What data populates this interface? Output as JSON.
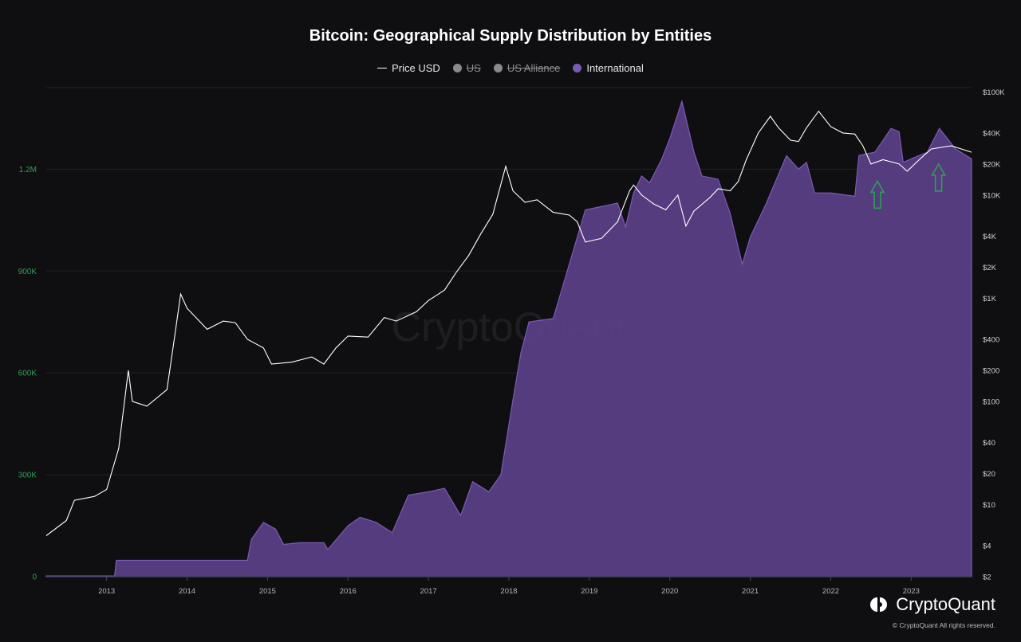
{
  "chart_data": {
    "type": "area",
    "title": "Bitcoin: Geographical Supply Distribution by Entities",
    "legend": [
      {
        "name": "Price USD",
        "marker": "line",
        "color": "#ffffff",
        "hidden": false
      },
      {
        "name": "US",
        "marker": "dot",
        "color": "#8a8a8a",
        "hidden": true
      },
      {
        "name": "US Alliance",
        "marker": "dot",
        "color": "#8a8a8a",
        "hidden": true
      },
      {
        "name": "International",
        "marker": "dot",
        "color": "#7b5ab3",
        "hidden": false
      }
    ],
    "x_ticks": [
      "2013",
      "2014",
      "2015",
      "2016",
      "2017",
      "2018",
      "2019",
      "2020",
      "2021",
      "2022",
      "2023"
    ],
    "x_range": [
      2012.25,
      2023.75
    ],
    "y_left": {
      "ticks": [
        0,
        300000,
        600000,
        900000,
        1200000
      ],
      "tick_labels": [
        "0",
        "300K",
        "600K",
        "900K",
        "1.2M"
      ],
      "range": [
        0,
        1440000
      ]
    },
    "y_right": {
      "scale": "log",
      "ticks": [
        2,
        4,
        10,
        20,
        40,
        100,
        200,
        400,
        1000,
        2000,
        4000,
        10000,
        20000,
        40000,
        100000
      ],
      "tick_labels": [
        "$2",
        "$4",
        "$10",
        "$20",
        "$40",
        "$100",
        "$200",
        "$400",
        "$1K",
        "$2K",
        "$4K",
        "$10K",
        "$20K",
        "$40K",
        "$100K"
      ],
      "range": [
        2,
        110000
      ]
    },
    "grid": true,
    "legend_position": "top-center",
    "series": [
      {
        "name": "International",
        "axis": "left",
        "color": "#5a3f86",
        "points": [
          [
            2012.25,
            2000
          ],
          [
            2013.1,
            2000
          ],
          [
            2013.12,
            48000
          ],
          [
            2014.75,
            48000
          ],
          [
            2014.8,
            110000
          ],
          [
            2014.95,
            160000
          ],
          [
            2015.1,
            140000
          ],
          [
            2015.2,
            95000
          ],
          [
            2015.4,
            100000
          ],
          [
            2015.7,
            100000
          ],
          [
            2015.75,
            80000
          ],
          [
            2016.0,
            150000
          ],
          [
            2016.15,
            175000
          ],
          [
            2016.35,
            160000
          ],
          [
            2016.55,
            130000
          ],
          [
            2016.75,
            240000
          ],
          [
            2017.0,
            250000
          ],
          [
            2017.2,
            260000
          ],
          [
            2017.4,
            180000
          ],
          [
            2017.55,
            280000
          ],
          [
            2017.75,
            250000
          ],
          [
            2017.9,
            300000
          ],
          [
            2018.05,
            520000
          ],
          [
            2018.15,
            660000
          ],
          [
            2018.25,
            750000
          ],
          [
            2018.55,
            760000
          ],
          [
            2018.75,
            920000
          ],
          [
            2018.95,
            1080000
          ],
          [
            2019.35,
            1100000
          ],
          [
            2019.45,
            1030000
          ],
          [
            2019.55,
            1130000
          ],
          [
            2019.65,
            1180000
          ],
          [
            2019.75,
            1160000
          ],
          [
            2019.9,
            1230000
          ],
          [
            2020.0,
            1290000
          ],
          [
            2020.15,
            1400000
          ],
          [
            2020.3,
            1250000
          ],
          [
            2020.4,
            1180000
          ],
          [
            2020.6,
            1170000
          ],
          [
            2020.75,
            1070000
          ],
          [
            2020.9,
            920000
          ],
          [
            2021.0,
            1000000
          ],
          [
            2021.2,
            1100000
          ],
          [
            2021.45,
            1240000
          ],
          [
            2021.6,
            1200000
          ],
          [
            2021.7,
            1220000
          ],
          [
            2021.8,
            1130000
          ],
          [
            2022.0,
            1130000
          ],
          [
            2022.3,
            1120000
          ],
          [
            2022.35,
            1240000
          ],
          [
            2022.55,
            1250000
          ],
          [
            2022.75,
            1320000
          ],
          [
            2022.85,
            1310000
          ],
          [
            2022.9,
            1220000
          ],
          [
            2023.0,
            1230000
          ],
          [
            2023.2,
            1250000
          ],
          [
            2023.35,
            1320000
          ],
          [
            2023.55,
            1260000
          ],
          [
            2023.75,
            1230000
          ]
        ]
      },
      {
        "name": "Price USD",
        "axis": "right",
        "color": "#ffffff",
        "points": [
          [
            2012.25,
            5
          ],
          [
            2012.5,
            7
          ],
          [
            2012.6,
            11
          ],
          [
            2012.85,
            12
          ],
          [
            2013.0,
            14
          ],
          [
            2013.15,
            35
          ],
          [
            2013.27,
            200
          ],
          [
            2013.32,
            100
          ],
          [
            2013.5,
            90
          ],
          [
            2013.75,
            130
          ],
          [
            2013.85,
            450
          ],
          [
            2013.92,
            1100
          ],
          [
            2014.0,
            800
          ],
          [
            2014.25,
            500
          ],
          [
            2014.45,
            600
          ],
          [
            2014.6,
            580
          ],
          [
            2014.75,
            400
          ],
          [
            2014.95,
            330
          ],
          [
            2015.05,
            230
          ],
          [
            2015.3,
            240
          ],
          [
            2015.55,
            270
          ],
          [
            2015.7,
            230
          ],
          [
            2015.85,
            330
          ],
          [
            2016.0,
            430
          ],
          [
            2016.25,
            420
          ],
          [
            2016.45,
            650
          ],
          [
            2016.6,
            600
          ],
          [
            2016.85,
            740
          ],
          [
            2017.0,
            950
          ],
          [
            2017.2,
            1200
          ],
          [
            2017.35,
            1800
          ],
          [
            2017.5,
            2600
          ],
          [
            2017.65,
            4200
          ],
          [
            2017.8,
            6500
          ],
          [
            2017.96,
            19000
          ],
          [
            2018.05,
            11000
          ],
          [
            2018.2,
            8500
          ],
          [
            2018.35,
            9000
          ],
          [
            2018.55,
            6800
          ],
          [
            2018.75,
            6400
          ],
          [
            2018.85,
            5500
          ],
          [
            2018.95,
            3500
          ],
          [
            2019.15,
            3800
          ],
          [
            2019.35,
            5500
          ],
          [
            2019.5,
            11000
          ],
          [
            2019.55,
            12500
          ],
          [
            2019.65,
            10000
          ],
          [
            2019.8,
            8200
          ],
          [
            2019.95,
            7200
          ],
          [
            2020.1,
            10000
          ],
          [
            2020.2,
            5000
          ],
          [
            2020.3,
            7000
          ],
          [
            2020.5,
            9500
          ],
          [
            2020.6,
            11500
          ],
          [
            2020.75,
            11000
          ],
          [
            2020.85,
            13500
          ],
          [
            2020.95,
            22000
          ],
          [
            2021.1,
            40000
          ],
          [
            2021.25,
            58000
          ],
          [
            2021.35,
            45000
          ],
          [
            2021.5,
            34000
          ],
          [
            2021.6,
            33000
          ],
          [
            2021.7,
            45000
          ],
          [
            2021.85,
            65000
          ],
          [
            2022.0,
            46000
          ],
          [
            2022.15,
            40000
          ],
          [
            2022.3,
            39000
          ],
          [
            2022.4,
            30000
          ],
          [
            2022.5,
            20000
          ],
          [
            2022.65,
            22000
          ],
          [
            2022.85,
            20000
          ],
          [
            2022.95,
            17000
          ],
          [
            2023.1,
            22000
          ],
          [
            2023.25,
            28000
          ],
          [
            2023.5,
            30000
          ],
          [
            2023.75,
            26000
          ]
        ]
      }
    ],
    "annotations": [
      {
        "type": "arrow-up",
        "color": "#2e9e55",
        "x": 2022.58,
        "y": 1165000
      },
      {
        "type": "arrow-up",
        "color": "#2e9e55",
        "x": 2023.34,
        "y": 1215000
      }
    ],
    "watermark": "CryptoQuant"
  },
  "branding": {
    "name": "CryptoQuant",
    "copyright": "© CryptoQuant All rights reserved."
  },
  "colors": {
    "background": "#0f0f12",
    "area_fill": "#5a3f86",
    "area_stroke": "#7b5ab3",
    "left_tick": "#2e9e55"
  }
}
